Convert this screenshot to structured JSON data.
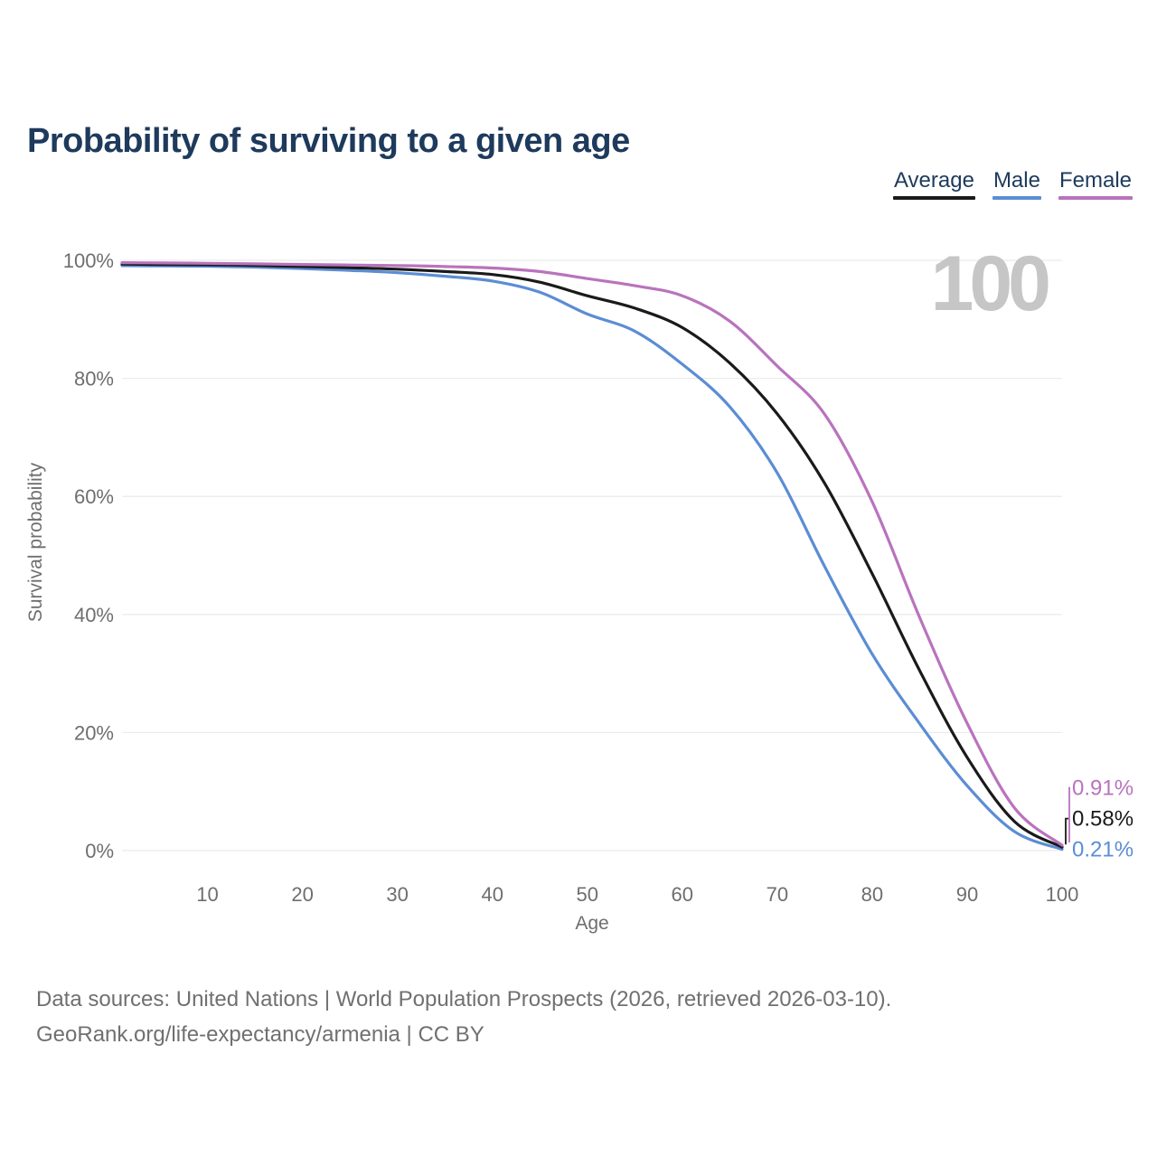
{
  "title": "Probability of surviving to a given age",
  "legend": {
    "items": [
      {
        "label": "Average",
        "color": "#1a1a1a"
      },
      {
        "label": "Male",
        "color": "#5b8dd4"
      },
      {
        "label": "Female",
        "color": "#b973bd"
      }
    ]
  },
  "chart_data": {
    "type": "line",
    "title": "Probability of surviving to a given age",
    "xlabel": "Age",
    "ylabel": "Survival probability",
    "xlim": [
      1,
      100
    ],
    "ylim": [
      0,
      100
    ],
    "grid": "horizontal",
    "legend_position": "top-right",
    "watermark": "100",
    "x": [
      1,
      5,
      10,
      15,
      20,
      25,
      30,
      35,
      40,
      45,
      50,
      55,
      60,
      65,
      70,
      75,
      80,
      85,
      90,
      95,
      100
    ],
    "series": [
      {
        "name": "Male",
        "color": "#5b8dd4",
        "end_label": "0.21%",
        "values": [
          99.1,
          99.05,
          99.0,
          98.85,
          98.6,
          98.3,
          97.9,
          97.3,
          96.5,
          94.6,
          90.9,
          88.0,
          82.4,
          75.2,
          64.0,
          48.1,
          33.3,
          21.5,
          11.0,
          3.2,
          0.21
        ]
      },
      {
        "name": "Average",
        "color": "#1a1a1a",
        "end_label": "0.58%",
        "values": [
          99.35,
          99.3,
          99.25,
          99.15,
          98.95,
          98.75,
          98.5,
          98.1,
          97.6,
          96.3,
          94.0,
          91.9,
          88.6,
          82.6,
          74.0,
          62.2,
          46.9,
          30.5,
          15.8,
          4.9,
          0.58
        ]
      },
      {
        "name": "Female",
        "color": "#b973bd",
        "end_label": "0.91%",
        "values": [
          99.6,
          99.55,
          99.5,
          99.4,
          99.3,
          99.2,
          99.1,
          98.95,
          98.7,
          98.1,
          96.9,
          95.7,
          94.0,
          89.7,
          82.1,
          73.9,
          59.1,
          39.5,
          21.6,
          7.2,
          0.91
        ]
      }
    ],
    "x_ticks": {
      "values": [
        10,
        20,
        30,
        40,
        50,
        60,
        70,
        80,
        90,
        100
      ],
      "labels": [
        "10",
        "20",
        "30",
        "40",
        "50",
        "60",
        "70",
        "80",
        "90",
        "100"
      ]
    },
    "y_ticks": {
      "values": [
        100,
        80,
        60,
        40,
        20,
        0
      ],
      "labels": [
        "100%",
        "80%",
        "60%",
        "40%",
        "20%",
        "0%"
      ]
    }
  },
  "footer": {
    "line1": "Data sources: United Nations | World Population Prospects (2026, retrieved 2026-03-10).",
    "line2": "GeoRank.org/life-expectancy/armenia | CC BY"
  }
}
